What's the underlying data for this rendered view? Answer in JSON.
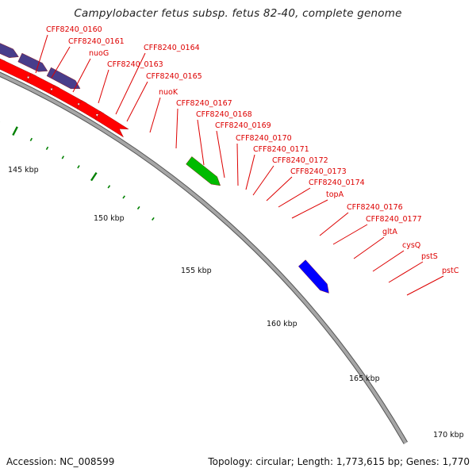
{
  "title": "Campylobacter fetus subsp. fetus 82-40, complete genome",
  "footer": {
    "accession": "Accession: NC_008599",
    "summary": "Topology: circular; Length: 1,773,615 bp; Genes: 1,770"
  },
  "colors": {
    "cds_forward": "#00e5ee",
    "cds_forward_alt": "#483d8b",
    "trna": "#ee1fb4",
    "rna": "#0000ff",
    "cds_reverse": "#ff0000",
    "misc": "#00bb00",
    "backbone": "#a6a6a6",
    "tick": "#008000",
    "label": "#dd0000"
  },
  "gene_labels": [
    "CFF8240_0160",
    "CFF8240_0161",
    "nuoG",
    "CFF8240_0163",
    "CFF8240_0164",
    "CFF8240_0165",
    "nuoK",
    "CFF8240_0167",
    "CFF8240_0168",
    "CFF8240_0169",
    "CFF8240_0170",
    "CFF8240_0171",
    "CFF8240_0172",
    "CFF8240_0173",
    "CFF8240_0174",
    "topA",
    "CFF8240_0176",
    "CFF8240_0177",
    "gltA",
    "cysQ",
    "pstS",
    "pstC"
  ],
  "kbp_labels": [
    "145 kbp",
    "150 kbp",
    "155 kbp",
    "160 kbp",
    "165 kbp",
    "170 kbp"
  ]
}
